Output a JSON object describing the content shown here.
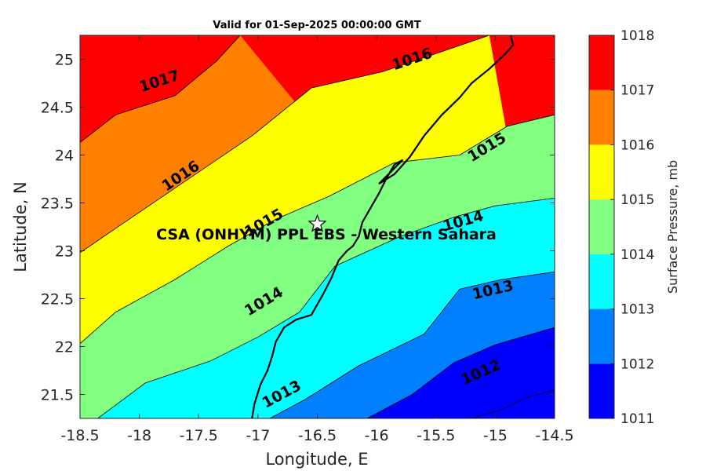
{
  "chart_data": {
    "type": "contour",
    "title": "Valid for 01-Sep-2025 00:00:00 GMT",
    "xlabel": "Longitude, E",
    "ylabel": "Latitude, N",
    "xlim": [
      -18.5,
      -14.5
    ],
    "ylim": [
      21.25,
      25.25
    ],
    "xticks": [
      "-18.5",
      "-18",
      "-17.5",
      "-17",
      "-16.5",
      "-16",
      "-15.5",
      "-15",
      "-14.5"
    ],
    "yticks": [
      "21.5",
      "22",
      "22.5",
      "23",
      "23.5",
      "24",
      "24.5",
      "25"
    ],
    "colorbar": {
      "label": "Surface Pressure, mb",
      "levels": [
        1011,
        1012,
        1013,
        1014,
        1015,
        1016,
        1017,
        1018
      ],
      "ticks": [
        "1011",
        "1012",
        "1013",
        "1014",
        "1015",
        "1016",
        "1017",
        "1018"
      ],
      "colors": [
        "#0000ff",
        "#0080ff",
        "#00ffff",
        "#80ff80",
        "#ffff00",
        "#ff8000",
        "#ff0000",
        "#800000"
      ]
    },
    "contours": [
      {
        "level": 1012,
        "points": [
          [
            -16.08,
            21.25
          ],
          [
            -15.7,
            21.5
          ],
          [
            -15.35,
            21.83
          ],
          [
            -15.0,
            22.02
          ],
          [
            -14.5,
            22.2
          ]
        ]
      },
      {
        "level": 1013,
        "points": [
          [
            -16.9,
            21.25
          ],
          [
            -16.6,
            21.45
          ],
          [
            -16.15,
            21.8
          ],
          [
            -15.6,
            22.13
          ],
          [
            -15.3,
            22.6
          ],
          [
            -14.95,
            22.7
          ],
          [
            -14.5,
            22.78
          ]
        ]
      },
      {
        "level": 1014,
        "points": [
          [
            -18.35,
            21.25
          ],
          [
            -17.95,
            21.62
          ],
          [
            -17.4,
            21.85
          ],
          [
            -17.0,
            22.1
          ],
          [
            -16.65,
            22.36
          ],
          [
            -16.35,
            22.84
          ],
          [
            -15.8,
            23.15
          ],
          [
            -15.35,
            23.35
          ],
          [
            -15.0,
            23.47
          ],
          [
            -14.5,
            23.55
          ]
        ]
      },
      {
        "level": 1015,
        "points": [
          [
            -18.5,
            22.03
          ],
          [
            -18.2,
            22.36
          ],
          [
            -17.7,
            22.7
          ],
          [
            -17.25,
            23.05
          ],
          [
            -16.85,
            23.33
          ],
          [
            -16.4,
            23.57
          ],
          [
            -15.85,
            23.92
          ],
          [
            -15.3,
            24.0
          ],
          [
            -14.9,
            24.3
          ],
          [
            -14.5,
            24.42
          ]
        ]
      },
      {
        "level": 1016,
        "points": [
          [
            -18.5,
            22.98
          ],
          [
            -18.05,
            23.36
          ],
          [
            -17.55,
            23.78
          ],
          [
            -17.05,
            24.2
          ],
          [
            -16.55,
            24.7
          ],
          [
            -15.95,
            24.87
          ],
          [
            -15.45,
            25.08
          ],
          [
            -15.05,
            25.25
          ]
        ]
      },
      {
        "level": 1017,
        "points": [
          [
            -18.5,
            24.13
          ],
          [
            -18.2,
            24.42
          ],
          [
            -17.7,
            24.62
          ],
          [
            -17.35,
            24.98
          ],
          [
            -17.15,
            25.25
          ]
        ]
      },
      {
        "level": 1012,
        "points": [
          [
            -15.2,
            21.25
          ],
          [
            -14.95,
            21.34
          ],
          [
            -14.75,
            21.46
          ],
          [
            -14.5,
            21.55
          ]
        ]
      }
    ],
    "contour_labels": [
      {
        "text": "1017",
        "x": -17.83,
        "y": 24.77
      },
      {
        "text": "1016",
        "x": -15.7,
        "y": 25.0
      },
      {
        "text": "1016",
        "x": -17.65,
        "y": 23.78
      },
      {
        "text": "1015",
        "x": -16.95,
        "y": 23.29
      },
      {
        "text": "1015",
        "x": -15.07,
        "y": 24.08
      },
      {
        "text": "1014",
        "x": -16.95,
        "y": 22.47
      },
      {
        "text": "1014",
        "x": -15.27,
        "y": 23.31
      },
      {
        "text": "1013",
        "x": -16.8,
        "y": 21.5
      },
      {
        "text": "1013",
        "x": -15.02,
        "y": 22.59
      },
      {
        "text": "1012",
        "x": -15.12,
        "y": 21.73
      }
    ],
    "coastline": [
      [
        -17.05,
        21.25
      ],
      [
        -17.03,
        21.4
      ],
      [
        -16.98,
        21.6
      ],
      [
        -16.92,
        21.75
      ],
      [
        -16.88,
        21.9
      ],
      [
        -16.85,
        22.05
      ],
      [
        -16.78,
        22.2
      ],
      [
        -16.68,
        22.28
      ],
      [
        -16.55,
        22.33
      ],
      [
        -16.45,
        22.55
      ],
      [
        -16.38,
        22.72
      ],
      [
        -16.32,
        22.9
      ],
      [
        -16.25,
        23.0
      ],
      [
        -16.2,
        23.05
      ],
      [
        -16.15,
        23.15
      ],
      [
        -16.12,
        23.3
      ],
      [
        -16.05,
        23.45
      ],
      [
        -15.98,
        23.6
      ],
      [
        -15.92,
        23.75
      ],
      [
        -15.85,
        23.9
      ],
      [
        -15.78,
        23.95
      ],
      [
        -15.98,
        23.7
      ],
      [
        -15.85,
        23.8
      ],
      [
        -15.72,
        23.98
      ],
      [
        -15.6,
        24.2
      ],
      [
        -15.45,
        24.42
      ],
      [
        -15.3,
        24.6
      ],
      [
        -15.2,
        24.75
      ],
      [
        -15.05,
        24.9
      ],
      [
        -14.92,
        25.05
      ],
      [
        -14.85,
        25.15
      ],
      [
        -14.87,
        25.25
      ]
    ],
    "site": {
      "name": "CSA (ONHYM) PPL EBS - Western Sahara",
      "lon": -16.5,
      "lat": 23.28
    }
  }
}
